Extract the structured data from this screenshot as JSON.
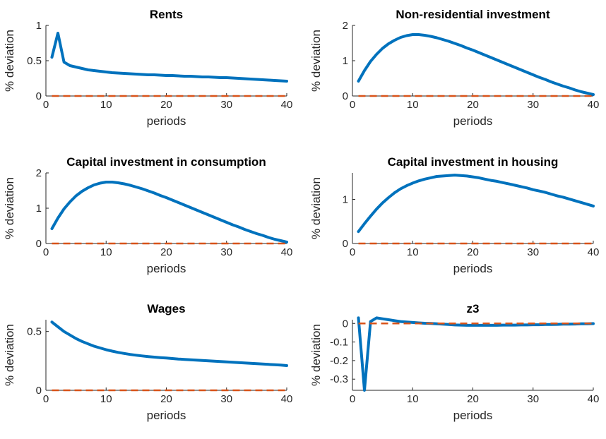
{
  "chart_data": [
    {
      "type": "line",
      "title": "Rents",
      "xlabel": "periods",
      "ylabel": "% deviation",
      "xlim": [
        0,
        40
      ],
      "ylim": [
        0,
        1
      ],
      "xticks": [
        0,
        10,
        20,
        30,
        40
      ],
      "yticks": [
        0,
        0.5,
        1
      ],
      "ytick_labels": [
        "0",
        "0.5",
        "1"
      ],
      "series": [
        {
          "color": "#0072BD",
          "style": "solid",
          "x": [
            1,
            2,
            3,
            4,
            5,
            6,
            7,
            8,
            9,
            10,
            11,
            12,
            13,
            14,
            15,
            16,
            17,
            18,
            19,
            20,
            21,
            22,
            23,
            24,
            25,
            26,
            27,
            28,
            29,
            30,
            31,
            32,
            33,
            34,
            35,
            36,
            37,
            38,
            39,
            40
          ],
          "values": [
            0.55,
            0.89,
            0.48,
            0.43,
            0.41,
            0.39,
            0.37,
            0.36,
            0.35,
            0.34,
            0.33,
            0.325,
            0.32,
            0.315,
            0.31,
            0.305,
            0.3,
            0.3,
            0.295,
            0.29,
            0.29,
            0.285,
            0.28,
            0.28,
            0.275,
            0.27,
            0.27,
            0.265,
            0.26,
            0.26,
            0.255,
            0.25,
            0.245,
            0.24,
            0.235,
            0.23,
            0.225,
            0.22,
            0.215,
            0.21
          ]
        },
        {
          "color": "#D95319",
          "style": "dashed",
          "x": [
            1,
            40
          ],
          "values": [
            0,
            0
          ]
        }
      ]
    },
    {
      "type": "line",
      "title": "Non-residential investment",
      "xlabel": "periods",
      "ylabel": "% deviation",
      "xlim": [
        0,
        40
      ],
      "ylim": [
        0,
        2
      ],
      "xticks": [
        0,
        10,
        20,
        30,
        40
      ],
      "yticks": [
        0,
        1,
        2
      ],
      "ytick_labels": [
        "0",
        "1",
        "2"
      ],
      "series": [
        {
          "color": "#0072BD",
          "style": "solid",
          "x": [
            1,
            2,
            3,
            4,
            5,
            6,
            7,
            8,
            9,
            10,
            11,
            12,
            13,
            14,
            15,
            16,
            17,
            18,
            19,
            20,
            21,
            22,
            23,
            24,
            25,
            26,
            27,
            28,
            29,
            30,
            31,
            32,
            33,
            34,
            35,
            36,
            37,
            38,
            39,
            40
          ],
          "values": [
            0.42,
            0.72,
            0.98,
            1.18,
            1.35,
            1.48,
            1.58,
            1.66,
            1.71,
            1.74,
            1.74,
            1.72,
            1.69,
            1.65,
            1.6,
            1.55,
            1.49,
            1.43,
            1.36,
            1.3,
            1.23,
            1.16,
            1.09,
            1.02,
            0.95,
            0.88,
            0.81,
            0.74,
            0.67,
            0.6,
            0.53,
            0.47,
            0.4,
            0.34,
            0.28,
            0.23,
            0.17,
            0.12,
            0.08,
            0.04
          ]
        },
        {
          "color": "#D95319",
          "style": "dashed",
          "x": [
            1,
            40
          ],
          "values": [
            0,
            0
          ]
        }
      ]
    },
    {
      "type": "line",
      "title": "Capital investment in consumption",
      "xlabel": "periods",
      "ylabel": "% deviation",
      "xlim": [
        0,
        40
      ],
      "ylim": [
        0,
        2
      ],
      "xticks": [
        0,
        10,
        20,
        30,
        40
      ],
      "yticks": [
        0,
        1,
        2
      ],
      "ytick_labels": [
        "0",
        "1",
        "2"
      ],
      "series": [
        {
          "color": "#0072BD",
          "style": "solid",
          "x": [
            1,
            2,
            3,
            4,
            5,
            6,
            7,
            8,
            9,
            10,
            11,
            12,
            13,
            14,
            15,
            16,
            17,
            18,
            19,
            20,
            21,
            22,
            23,
            24,
            25,
            26,
            27,
            28,
            29,
            30,
            31,
            32,
            33,
            34,
            35,
            36,
            37,
            38,
            39,
            40
          ],
          "values": [
            0.42,
            0.72,
            0.98,
            1.18,
            1.35,
            1.48,
            1.58,
            1.66,
            1.71,
            1.74,
            1.74,
            1.72,
            1.69,
            1.65,
            1.6,
            1.55,
            1.49,
            1.43,
            1.36,
            1.3,
            1.23,
            1.16,
            1.09,
            1.02,
            0.95,
            0.88,
            0.81,
            0.74,
            0.67,
            0.6,
            0.53,
            0.47,
            0.4,
            0.34,
            0.28,
            0.23,
            0.17,
            0.12,
            0.08,
            0.04
          ]
        },
        {
          "color": "#D95319",
          "style": "dashed",
          "x": [
            1,
            40
          ],
          "values": [
            0,
            0
          ]
        }
      ]
    },
    {
      "type": "line",
      "title": "Capital investment in housing",
      "xlabel": "periods",
      "ylabel": "% deviation",
      "xlim": [
        0,
        40
      ],
      "ylim": [
        0,
        1.6
      ],
      "xticks": [
        0,
        10,
        20,
        30,
        40
      ],
      "yticks": [
        0,
        1
      ],
      "ytick_labels": [
        "0",
        "1"
      ],
      "series": [
        {
          "color": "#0072BD",
          "style": "solid",
          "x": [
            1,
            2,
            3,
            4,
            5,
            6,
            7,
            8,
            9,
            10,
            11,
            12,
            13,
            14,
            15,
            16,
            17,
            18,
            19,
            20,
            21,
            22,
            23,
            24,
            25,
            26,
            27,
            28,
            29,
            30,
            31,
            32,
            33,
            34,
            35,
            36,
            37,
            38,
            39,
            40
          ],
          "values": [
            0.27,
            0.45,
            0.62,
            0.78,
            0.92,
            1.04,
            1.15,
            1.24,
            1.31,
            1.37,
            1.42,
            1.46,
            1.49,
            1.52,
            1.53,
            1.54,
            1.55,
            1.54,
            1.53,
            1.51,
            1.49,
            1.46,
            1.43,
            1.41,
            1.38,
            1.35,
            1.32,
            1.29,
            1.26,
            1.22,
            1.19,
            1.16,
            1.12,
            1.08,
            1.05,
            1.01,
            0.97,
            0.93,
            0.89,
            0.85
          ]
        },
        {
          "color": "#D95319",
          "style": "dashed",
          "x": [
            1,
            40
          ],
          "values": [
            0,
            0
          ]
        }
      ]
    },
    {
      "type": "line",
      "title": "Wages",
      "xlabel": "periods",
      "ylabel": "% deviation",
      "xlim": [
        0,
        40
      ],
      "ylim": [
        0,
        0.6
      ],
      "xticks": [
        0,
        10,
        20,
        30,
        40
      ],
      "yticks": [
        0,
        0.5
      ],
      "ytick_labels": [
        "0",
        "0.5"
      ],
      "series": [
        {
          "color": "#0072BD",
          "style": "solid",
          "x": [
            1,
            2,
            3,
            4,
            5,
            6,
            7,
            8,
            9,
            10,
            11,
            12,
            13,
            14,
            15,
            16,
            17,
            18,
            19,
            20,
            21,
            22,
            23,
            24,
            25,
            26,
            27,
            28,
            29,
            30,
            31,
            32,
            33,
            34,
            35,
            36,
            37,
            38,
            39,
            40
          ],
          "values": [
            0.58,
            0.54,
            0.5,
            0.47,
            0.44,
            0.415,
            0.395,
            0.375,
            0.36,
            0.345,
            0.333,
            0.322,
            0.313,
            0.305,
            0.298,
            0.292,
            0.287,
            0.282,
            0.278,
            0.274,
            0.27,
            0.266,
            0.263,
            0.26,
            0.256,
            0.253,
            0.25,
            0.247,
            0.244,
            0.241,
            0.238,
            0.235,
            0.232,
            0.229,
            0.226,
            0.223,
            0.22,
            0.217,
            0.214,
            0.21
          ]
        },
        {
          "color": "#D95319",
          "style": "dashed",
          "x": [
            1,
            40
          ],
          "values": [
            0,
            0
          ]
        }
      ]
    },
    {
      "type": "line",
      "title": "z3",
      "xlabel": "periods",
      "ylabel": "% deviation",
      "xlim": [
        0,
        40
      ],
      "ylim": [
        -0.36,
        0.02
      ],
      "xticks": [
        0,
        10,
        20,
        30,
        40
      ],
      "yticks": [
        0,
        -0.1,
        -0.2,
        -0.3
      ],
      "ytick_labels": [
        "0",
        "-0.1",
        "-0.2",
        "-0.3"
      ],
      "series": [
        {
          "color": "#0072BD",
          "style": "solid",
          "x": [
            1,
            2,
            3,
            4,
            5,
            6,
            7,
            8,
            9,
            10,
            11,
            12,
            13,
            14,
            15,
            16,
            17,
            18,
            19,
            20,
            21,
            22,
            23,
            24,
            25,
            26,
            27,
            28,
            29,
            30,
            31,
            32,
            33,
            34,
            35,
            36,
            37,
            38,
            39,
            40
          ],
          "values": [
            0.03,
            -0.36,
            0.01,
            0.03,
            0.025,
            0.02,
            0.015,
            0.01,
            0.008,
            0.005,
            0.003,
            0.001,
            0.0,
            -0.002,
            -0.004,
            -0.006,
            -0.008,
            -0.009,
            -0.01,
            -0.01,
            -0.01,
            -0.01,
            -0.01,
            -0.01,
            -0.009,
            -0.009,
            -0.009,
            -0.008,
            -0.008,
            -0.007,
            -0.007,
            -0.006,
            -0.006,
            -0.005,
            -0.004,
            -0.004,
            -0.003,
            -0.002,
            -0.002,
            -0.001
          ]
        },
        {
          "color": "#D95319",
          "style": "dashed",
          "x": [
            1,
            40
          ],
          "values": [
            0,
            0
          ]
        }
      ]
    }
  ]
}
